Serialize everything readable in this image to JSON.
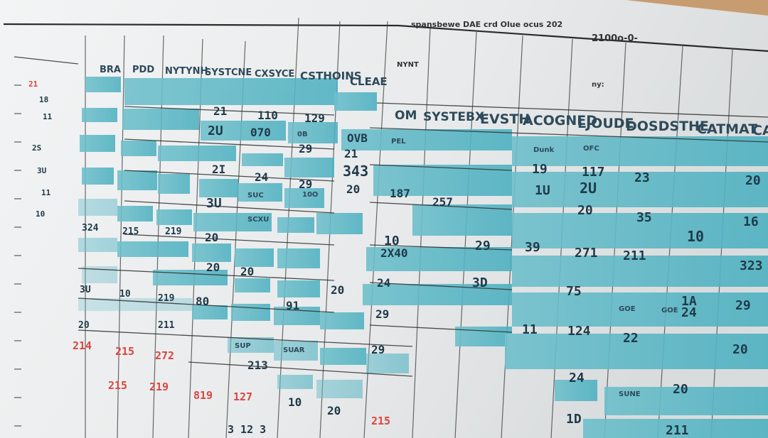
{
  "header": {
    "top_title": "spansbewe DAE crd Olue ocus 202",
    "top_right": "2100o-0-",
    "small_label": "ny:",
    "mid_label": "NYNT"
  },
  "column_headers_upper": [
    "BRA",
    "PDD",
    "NYTYNH",
    "SYSTCNE",
    "CXSYCE",
    "CSTHOINS",
    "CLEAE"
  ],
  "column_headers_lower": [
    "OM",
    "SYSTEBX",
    "EVSTH",
    "ACOGNED",
    "LJOUDE",
    "DOSDSTHE",
    "CATMAT",
    "CA"
  ],
  "rows": [
    [
      "21",
      "110",
      "129"
    ],
    [
      "2U",
      "070",
      "OVB"
    ],
    [
      "29",
      "24",
      "21"
    ],
    [
      "3U",
      "343",
      "20"
    ],
    [
      "2I",
      "187",
      "29"
    ],
    [
      "20",
      "257",
      "20"
    ],
    [
      "10",
      "2X40",
      "91"
    ],
    [
      "20",
      "24",
      "20"
    ],
    [
      "29",
      "213",
      "29"
    ],
    [
      "20",
      "10",
      "80"
    ]
  ],
  "right_block": [
    [
      "19",
      "117",
      "23",
      "20"
    ],
    [
      "1U",
      "2U",
      "35",
      "16"
    ],
    [
      "20",
      "39",
      "10",
      "29"
    ],
    [
      "271",
      "211",
      "323",
      "3D"
    ],
    [
      "75",
      "1A",
      "29",
      "24"
    ],
    [
      "11",
      "124",
      "20",
      "22"
    ],
    [
      "24",
      "1D",
      "20",
      "211"
    ]
  ],
  "left_margin": [
    "21",
    "18",
    "11",
    "2S",
    "3U",
    "11",
    "10",
    "324",
    "215",
    "219",
    "10",
    "219",
    "3U",
    "211",
    "20"
  ],
  "bottom_label": "3 12 3"
}
